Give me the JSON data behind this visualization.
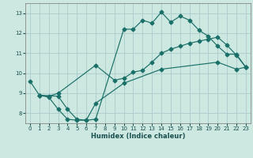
{
  "xlabel": "Humidex (Indice chaleur)",
  "xlim": [
    -0.5,
    23.5
  ],
  "ylim": [
    7.5,
    13.5
  ],
  "yticks": [
    8,
    9,
    10,
    11,
    12,
    13
  ],
  "xticks": [
    0,
    1,
    2,
    3,
    4,
    5,
    6,
    7,
    8,
    9,
    10,
    11,
    12,
    13,
    14,
    15,
    16,
    17,
    18,
    19,
    20,
    21,
    22,
    23
  ],
  "bg_color": "#cce8e0",
  "grid_color": "#aacccc",
  "line_color": "#1a7068",
  "line1_x": [
    0,
    1,
    2,
    3,
    4,
    5,
    6,
    7,
    10,
    11,
    12,
    13,
    14,
    15,
    16,
    17,
    18,
    19,
    20,
    21,
    22,
    23
  ],
  "line1_y": [
    9.6,
    8.9,
    8.8,
    8.2,
    7.7,
    7.65,
    7.65,
    7.7,
    12.2,
    12.2,
    12.65,
    12.5,
    13.05,
    12.55,
    12.85,
    12.65,
    12.15,
    11.85,
    11.35,
    10.95,
    10.95,
    10.3
  ],
  "line2_x": [
    1,
    2,
    3,
    7,
    9,
    10,
    11,
    12,
    13,
    14,
    15,
    16,
    17,
    18,
    19,
    20,
    21,
    22,
    23
  ],
  "line2_y": [
    8.9,
    8.85,
    9.0,
    10.4,
    9.65,
    9.75,
    10.05,
    10.15,
    10.55,
    11.0,
    11.2,
    11.35,
    11.5,
    11.6,
    11.7,
    11.8,
    11.4,
    10.9,
    10.3
  ],
  "line3_x": [
    1,
    3,
    4,
    5,
    6,
    7,
    10,
    14,
    20,
    22,
    23
  ],
  "line3_y": [
    8.9,
    8.85,
    8.2,
    7.7,
    7.65,
    8.5,
    9.5,
    10.2,
    10.55,
    10.2,
    10.3
  ]
}
